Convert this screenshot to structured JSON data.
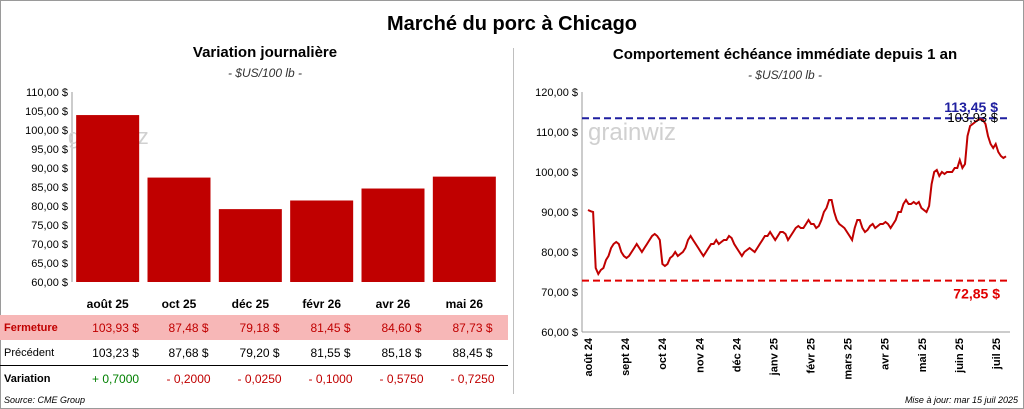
{
  "title": "Marché du porc à Chicago",
  "left": {
    "title": "Variation journalière",
    "unit": "- $US/100 lb -",
    "watermark": "grainwiz"
  },
  "right": {
    "title": "Comportement échéance immédiate depuis 1 an",
    "unit": "- $US/100 lb -",
    "watermark": "grainwiz"
  },
  "table": {
    "close_label": "Fermeture",
    "prev_label": "Précédent",
    "var_label": "Variation",
    "close": [
      "103,93 $",
      "87,48 $",
      "79,18 $",
      "81,45 $",
      "84,60 $",
      "87,73 $"
    ],
    "prev": [
      "103,23 $",
      "87,68 $",
      "79,20 $",
      "81,55 $",
      "85,18 $",
      "88,45 $"
    ],
    "var": [
      "+ 0,7000",
      "- 0,2000",
      "- 0,0250",
      "- 0,1000",
      "- 0,5750",
      "- 0,7250"
    ],
    "var_sign": [
      "pos",
      "neg",
      "neg",
      "neg",
      "neg",
      "neg"
    ]
  },
  "footer": {
    "source": "Source: CME Group",
    "updated": "Mise à jour: mar 15 juil 2025"
  },
  "colors": {
    "bar": "#c00000",
    "line": "#c00000",
    "high": "#1f1fa0",
    "low": "#e00000"
  },
  "chart_data": [
    {
      "type": "bar",
      "categories": [
        "août 25",
        "oct 25",
        "déc 25",
        "févr 26",
        "avr 26",
        "mai 26"
      ],
      "values": [
        103.93,
        87.48,
        79.18,
        81.45,
        84.6,
        87.73
      ],
      "ylim": [
        60,
        110
      ],
      "yticks": [
        "60,00 $",
        "65,00 $",
        "70,00 $",
        "75,00 $",
        "80,00 $",
        "85,00 $",
        "90,00 $",
        "95,00 $",
        "100,00 $",
        "105,00 $",
        "110,00 $"
      ],
      "grid": false
    },
    {
      "type": "line",
      "x_labels": [
        "août 24",
        "sept 24",
        "oct 24",
        "nov 24",
        "déc 24",
        "janv 25",
        "févr 25",
        "mars 25",
        "avr 25",
        "mai 25",
        "juin 25",
        "juil 25"
      ],
      "ylim": [
        60,
        120
      ],
      "yticks": [
        "60,00 $",
        "70,00 $",
        "80,00 $",
        "90,00 $",
        "100,00 $",
        "110,00 $",
        "120,00 $"
      ],
      "high": 113.45,
      "high_label": "113,45 $",
      "low": 72.85,
      "low_label": "72,85 $",
      "last": 103.93,
      "last_label": "103,93 $",
      "values": [
        90.5,
        90.2,
        90,
        76,
        74.5,
        75.5,
        76,
        78,
        79,
        81,
        82,
        82.5,
        82,
        80,
        79,
        78.5,
        79,
        80,
        81,
        82,
        81,
        80,
        81,
        82,
        83,
        84,
        84.5,
        84,
        83,
        77,
        76.5,
        77,
        78.5,
        79,
        80,
        79,
        79.5,
        80,
        81,
        83,
        84,
        83,
        82,
        81,
        80,
        79,
        80,
        81,
        82,
        82,
        83,
        82,
        82.5,
        83,
        83,
        84,
        83.5,
        82,
        81,
        80,
        79,
        80,
        80.5,
        81,
        80.5,
        80,
        81,
        82,
        83,
        84,
        84,
        85,
        84,
        83,
        84,
        85,
        85,
        84.5,
        83,
        84,
        85,
        86,
        86.5,
        86,
        86,
        87,
        88,
        87,
        87,
        86,
        86.5,
        88,
        90,
        91,
        93,
        93,
        90,
        88,
        87,
        86.5,
        86,
        85,
        84,
        83,
        86,
        88,
        88,
        86,
        85,
        85.5,
        86.5,
        87,
        86,
        86.5,
        87,
        87,
        87.5,
        87,
        86,
        87,
        88,
        90,
        90,
        92,
        93,
        92,
        92,
        92.5,
        92,
        92.5,
        91,
        90.5,
        90,
        91.5,
        97,
        100,
        100.5,
        99,
        100,
        99.5,
        100,
        100,
        100,
        101,
        101,
        103,
        101,
        102,
        109,
        111.5,
        112,
        112.5,
        113,
        113.2,
        113,
        112,
        109,
        107,
        106,
        107,
        105,
        104,
        103.5,
        103.93
      ]
    }
  ]
}
